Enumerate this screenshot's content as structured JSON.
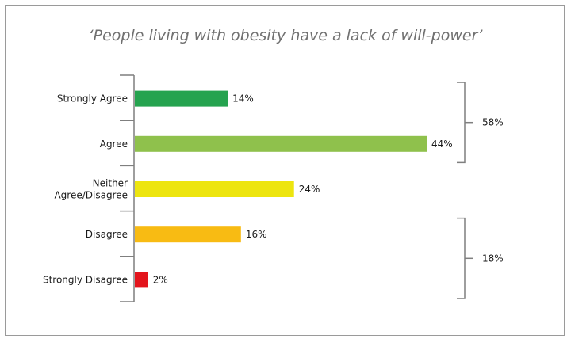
{
  "chart_data": {
    "type": "bar",
    "orientation": "horizontal",
    "title": "‘People living with obesity have a lack of will-power’",
    "categories": [
      [
        "Strongly Agree"
      ],
      [
        "Agree"
      ],
      [
        "Neither",
        "Agree/Disagree"
      ],
      [
        "Disagree"
      ],
      [
        "Strongly Disagree"
      ]
    ],
    "values": [
      14,
      44,
      24,
      16,
      2
    ],
    "value_labels": [
      "14%",
      "44%",
      "24%",
      "16%",
      "2%"
    ],
    "colors": [
      "#25a34f",
      "#8fc14c",
      "#ede50f",
      "#f8bb13",
      "#e3141c"
    ],
    "xlim": [
      0,
      44
    ],
    "grid": false,
    "legend": "none",
    "groups": [
      {
        "label": "58%",
        "from": 0,
        "to": 1
      },
      {
        "label": "18%",
        "from": 3,
        "to": 4
      }
    ]
  }
}
